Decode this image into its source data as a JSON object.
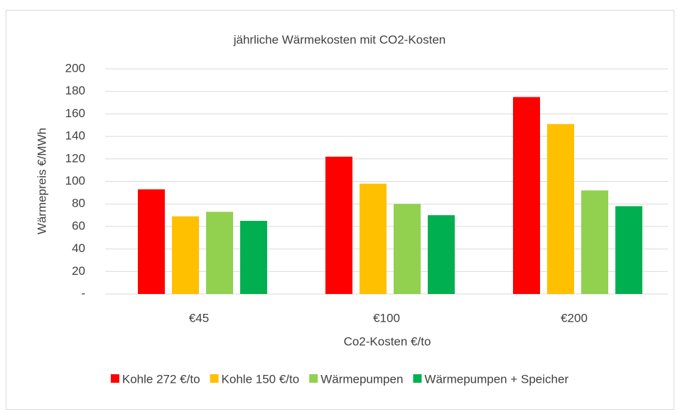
{
  "chart_data": {
    "type": "bar",
    "title": "jährliche Wärmekosten mit CO2-Kosten",
    "x_label": "Co2-Kosten €/to",
    "y_label": "Wärmepreis €/MWh",
    "categories": [
      "€45",
      "€100",
      "€200"
    ],
    "series": [
      {
        "name": "Kohle 272 €/to",
        "color": "#ff0000",
        "values": [
          93,
          122,
          175
        ]
      },
      {
        "name": "Kohle 150 €/to",
        "color": "#ffc000",
        "values": [
          69,
          98,
          151
        ]
      },
      {
        "name": "Wärmepumpen",
        "color": "#92d050",
        "values": [
          73,
          80,
          92
        ]
      },
      {
        "name": "Wärmepumpen + Speicher",
        "color": "#00b050",
        "values": [
          65,
          70,
          78
        ]
      }
    ],
    "ylim": [
      0,
      200
    ],
    "yticks": [
      {
        "value": 0,
        "label": "-"
      },
      20,
      40,
      60,
      80,
      100,
      120,
      140,
      160,
      180,
      200
    ],
    "grid": true,
    "legend": "bottom"
  }
}
